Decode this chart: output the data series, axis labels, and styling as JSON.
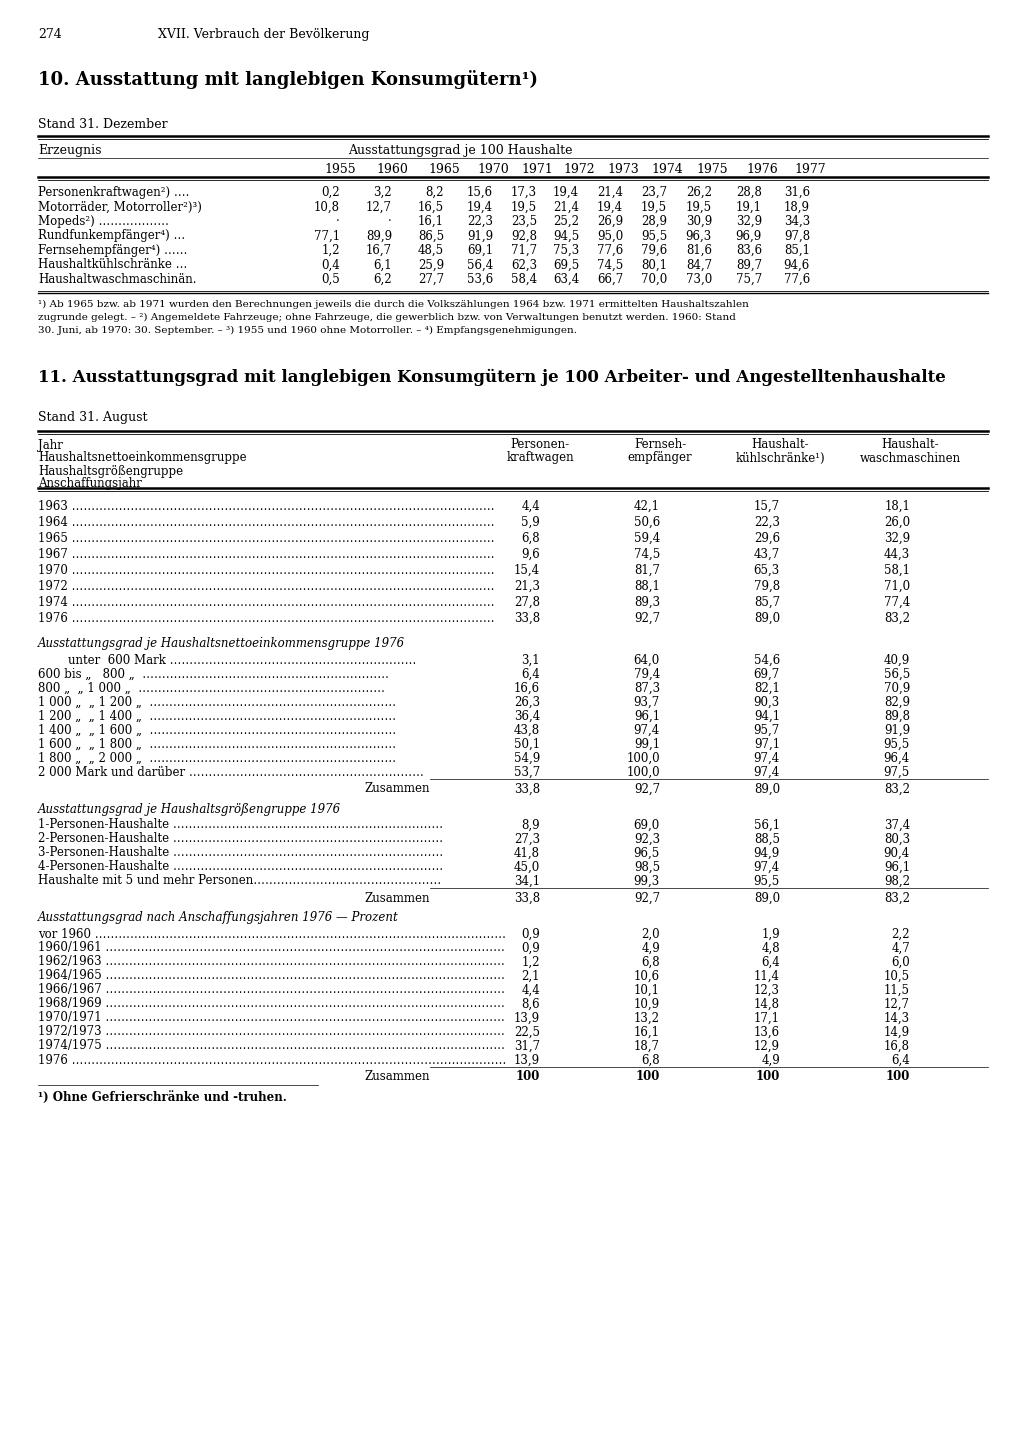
{
  "page_num": "274",
  "chapter": "XVII. Verbrauch der Bevölkerung",
  "section1_title": "10. Ausstattung mit langlebigen Konsumgütern¹)",
  "section1_stand": "Stand 31. Dezember",
  "table1_col_header_left": "Erzeugnis",
  "table1_col_header_span": "Ausstattungsgrad je 100 Haushalte",
  "table1_years": [
    "1955",
    "1960",
    "1965",
    "1970",
    "1971",
    "1972",
    "1973",
    "1974",
    "1975",
    "1976",
    "1977"
  ],
  "table1_rows": [
    [
      "Personenkraftwagen²) ….",
      "0,2",
      "3,2",
      "8,2",
      "15,6",
      "17,3",
      "19,4",
      "21,4",
      "23,7",
      "26,2",
      "28,8",
      "31,6"
    ],
    [
      "Motorräder, Motorroller²)³)",
      "10,8",
      "12,7",
      "16,5",
      "19,4",
      "19,5",
      "21,4",
      "19,4",
      "19,5",
      "19,5",
      "19,1",
      "18,9"
    ],
    [
      "Mopeds²) ………………",
      "·",
      "·",
      "16,1",
      "22,3",
      "23,5",
      "25,2",
      "26,9",
      "28,9",
      "30,9",
      "32,9",
      "34,3"
    ],
    [
      "Rundfunkempfänger⁴) …",
      "77,1",
      "89,9",
      "86,5",
      "91,9",
      "92,8",
      "94,5",
      "95,0",
      "95,5",
      "96,3",
      "96,9",
      "97,8"
    ],
    [
      "Fernsehempfänger⁴) ……",
      "1,2",
      "16,7",
      "48,5",
      "69,1",
      "71,7",
      "75,3",
      "77,6",
      "79,6",
      "81,6",
      "83,6",
      "85,1"
    ],
    [
      "Haushaltkühlschränke …",
      "0,4",
      "6,1",
      "25,9",
      "56,4",
      "62,3",
      "69,5",
      "74,5",
      "80,1",
      "84,7",
      "89,7",
      "94,6"
    ],
    [
      "Haushaltwaschmaschinän.",
      "0,5",
      "6,2",
      "27,7",
      "53,6",
      "58,4",
      "63,4",
      "66,7",
      "70,0",
      "73,0",
      "75,7",
      "77,6"
    ]
  ],
  "table1_footnote_lines": [
    "¹) Ab 1965 bzw. ab 1971 wurden den Berechnungen jeweils die durch die Volkszählungen 1964 bzw. 1971 ermittelten Haushaltszahlen",
    "zugrunde gelegt. – ²) Angemeldete Fahrzeuge; ohne Fahrzeuge, die gewerblich bzw. von Verwaltungen benutzt werden. 1960: Stand",
    "30. Juni, ab 1970: 30. September. – ³) 1955 und 1960 ohne Motorroller. – ⁴) Empfangsgenehmigungen."
  ],
  "section2_title": "11. Ausstattungsgrad mit langlebigen Konsumgütern je 100 Arbeiter- und Angestelltenhaushalte",
  "section2_stand": "Stand 31. August",
  "table2_col_header_left_lines": [
    "Jahr",
    "Haushaltsnettoeinkommensgruppe",
    "Haushaltsgrößengruppe",
    "Anschaffungsjahr"
  ],
  "table2_col_header_1_lines": [
    "Personen-",
    "kraftwagen"
  ],
  "table2_col_header_2_lines": [
    "Fernseh-",
    "empfänger"
  ],
  "table2_col_header_3_lines": [
    "Haushalt-",
    "kühlschränke¹)"
  ],
  "table2_col_header_4_lines": [
    "Haushalt-",
    "waschmaschinen"
  ],
  "table2_year_rows": [
    [
      "1963 ………………………………………………………………………………………………",
      "4,4",
      "42,1",
      "15,7",
      "18,1"
    ],
    [
      "1964 ………………………………………………………………………………………………",
      "5,9",
      "50,6",
      "22,3",
      "26,0"
    ],
    [
      "1965 ………………………………………………………………………………………………",
      "6,8",
      "59,4",
      "29,6",
      "32,9"
    ],
    [
      "1967 ………………………………………………………………………………………………",
      "9,6",
      "74,5",
      "43,7",
      "44,3"
    ],
    [
      "1970 ………………………………………………………………………………………………",
      "15,4",
      "81,7",
      "65,3",
      "58,1"
    ],
    [
      "1972 ………………………………………………………………………………………………",
      "21,3",
      "88,1",
      "79,8",
      "71,0"
    ],
    [
      "1974 ………………………………………………………………………………………………",
      "27,8",
      "89,3",
      "85,7",
      "77,4"
    ],
    [
      "1976 ………………………………………………………………………………………………",
      "33,8",
      "92,7",
      "89,0",
      "83,2"
    ]
  ],
  "table2_income_header": "Ausstattungsgrad je Haushaltsnettoeinkommensgruppe 1976",
  "table2_income_rows": [
    [
      "        unter  600 Mark ………………………………………………………",
      "3,1",
      "64,0",
      "54,6",
      "40,9"
    ],
    [
      "600 bis „   800 „  ………………………………………………………",
      "6,4",
      "79,4",
      "69,7",
      "56,5"
    ],
    [
      "800 „  „ 1 000 „  ………………………………………………………",
      "16,6",
      "87,3",
      "82,1",
      "70,9"
    ],
    [
      "1 000 „  „ 1 200 „  ………………………………………………………",
      "26,3",
      "93,7",
      "90,3",
      "82,9"
    ],
    [
      "1 200 „  „ 1 400 „  ………………………………………………………",
      "36,4",
      "96,1",
      "94,1",
      "89,8"
    ],
    [
      "1 400 „  „ 1 600 „  ………………………………………………………",
      "43,8",
      "97,4",
      "95,7",
      "91,9"
    ],
    [
      "1 600 „  „ 1 800 „  ………………………………………………………",
      "50,1",
      "99,1",
      "97,1",
      "95,5"
    ],
    [
      "1 800 „  „ 2 000 „  ………………………………………………………",
      "54,9",
      "100,0",
      "97,4",
      "96,4"
    ],
    [
      "2 000 Mark und darüber ……………………………………………………",
      "53,7",
      "100,0",
      "97,4",
      "97,5"
    ]
  ],
  "table2_income_sum": [
    "Zusammen",
    "33,8",
    "92,7",
    "89,0",
    "83,2"
  ],
  "table2_size_header": "Ausstattungsgrad je Haushaltsgrößengruppe 1976",
  "table2_size_rows": [
    [
      "1-Personen-Haushalte ……………………………………………………………",
      "8,9",
      "69,0",
      "56,1",
      "37,4"
    ],
    [
      "2-Personen-Haushalte ……………………………………………………………",
      "27,3",
      "92,3",
      "88,5",
      "80,3"
    ],
    [
      "3-Personen-Haushalte ……………………………………………………………",
      "41,8",
      "96,5",
      "94,9",
      "90,4"
    ],
    [
      "4-Personen-Haushalte ……………………………………………………………",
      "45,0",
      "98,5",
      "97,4",
      "96,1"
    ],
    [
      "Haushalte mit 5 und mehr Personen…………………………………………",
      "34,1",
      "99,3",
      "95,5",
      "98,2"
    ]
  ],
  "table2_size_sum": [
    "Zusammen",
    "33,8",
    "92,7",
    "89,0",
    "83,2"
  ],
  "table2_year_acq_header": "Ausstattungsgrad nach Anschaffungsjahren 1976 — Prozent",
  "table2_acq_rows": [
    [
      "vor 1960 ……………………………………………………………………………………………",
      "0,9",
      "2,0",
      "1,9",
      "2,2"
    ],
    [
      "1960/1961 …………………………………………………………………………………………",
      "0,9",
      "4,9",
      "4,8",
      "4,7"
    ],
    [
      "1962/1963 …………………………………………………………………………………………",
      "1,2",
      "6,8",
      "6,4",
      "6,0"
    ],
    [
      "1964/1965 …………………………………………………………………………………………",
      "2,1",
      "10,6",
      "11,4",
      "10,5"
    ],
    [
      "1966/1967 …………………………………………………………………………………………",
      "4,4",
      "10,1",
      "12,3",
      "11,5"
    ],
    [
      "1968/1969 …………………………………………………………………………………………",
      "8,6",
      "10,9",
      "14,8",
      "12,7"
    ],
    [
      "1970/1971 …………………………………………………………………………………………",
      "13,9",
      "13,2",
      "17,1",
      "14,3"
    ],
    [
      "1972/1973 …………………………………………………………………………………………",
      "22,5",
      "16,1",
      "13,6",
      "14,9"
    ],
    [
      "1974/1975 …………………………………………………………………………………………",
      "31,7",
      "18,7",
      "12,9",
      "16,8"
    ],
    [
      "1976 …………………………………………………………………………………………………",
      "13,9",
      "6,8",
      "4,9",
      "6,4"
    ]
  ],
  "table2_acq_sum": [
    "Zusammen",
    "100",
    "100",
    "100",
    "100"
  ],
  "table2_footnote": "¹) Ohne Gefrierschränke und -truhen."
}
